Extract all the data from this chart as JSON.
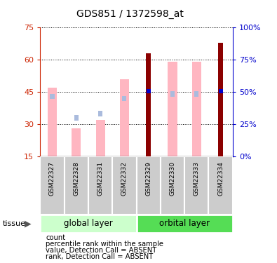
{
  "title": "GDS851 / 1372598_at",
  "samples": [
    "GSM22327",
    "GSM22328",
    "GSM22331",
    "GSM22332",
    "GSM22329",
    "GSM22330",
    "GSM22333",
    "GSM22334"
  ],
  "value_absent": [
    47.0,
    28.0,
    32.0,
    51.0,
    null,
    59.0,
    59.0,
    null
  ],
  "rank_absent": [
    43.0,
    33.0,
    35.0,
    42.0,
    null,
    44.0,
    44.0,
    null
  ],
  "count_present": [
    null,
    null,
    null,
    null,
    63.0,
    null,
    null,
    68.0
  ],
  "rank_present": [
    null,
    null,
    null,
    null,
    45.5,
    null,
    null,
    45.5
  ],
  "ylim_left": [
    15,
    75
  ],
  "ylim_right": [
    0,
    100
  ],
  "yticks_left": [
    15,
    30,
    45,
    60,
    75
  ],
  "yticks_right": [
    0,
    25,
    50,
    75,
    100
  ],
  "ytick_right_labels": [
    "0%",
    "25%",
    "50%",
    "75%",
    "100%"
  ],
  "color_count": "#8B0000",
  "color_rank_present": "#0000CD",
  "color_value_absent": "#FFB6C1",
  "color_rank_absent": "#AABBDD",
  "left_axis_color": "#CC2200",
  "right_axis_color": "#0000CC",
  "color_global": "#CCFFCC",
  "color_orbital": "#55DD55",
  "legend_items": [
    "count",
    "percentile rank within the sample",
    "value, Detection Call = ABSENT",
    "rank, Detection Call = ABSENT"
  ]
}
